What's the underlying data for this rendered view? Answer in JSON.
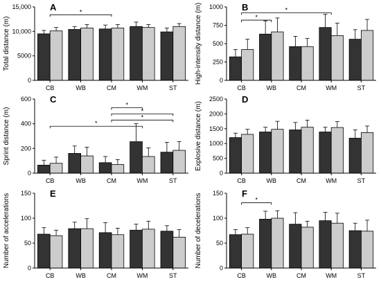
{
  "chart_data": [
    {
      "panel": "A",
      "type": "bar",
      "categories": [
        "CB",
        "WB",
        "CM",
        "WM",
        "ST"
      ],
      "ylabel": "Total distance (m)",
      "ylim": [
        0,
        15000
      ],
      "yticks": [
        "0",
        "5000",
        "10,000",
        "15,000"
      ],
      "ytick_values": [
        0,
        5000,
        10000,
        15000
      ],
      "series": [
        {
          "values": [
            9500,
            10400,
            10500,
            11000,
            9900
          ],
          "errors": [
            700,
            600,
            800,
            900,
            800
          ]
        },
        {
          "values": [
            10100,
            10700,
            10700,
            10800,
            11000
          ],
          "errors": [
            700,
            700,
            700,
            600,
            600
          ]
        }
      ],
      "annotations": [
        {
          "from": 0,
          "to": 2,
          "label": "*",
          "y": 13400
        }
      ]
    },
    {
      "panel": "B",
      "type": "bar",
      "categories": [
        "CB",
        "WB",
        "CM",
        "WM",
        "ST"
      ],
      "ylabel": "High-intensity distance (m)",
      "ylim": [
        0,
        1000
      ],
      "yticks": [
        "0",
        "250",
        "500",
        "750",
        "1000"
      ],
      "ytick_values": [
        0,
        250,
        500,
        750,
        1000
      ],
      "series": [
        {
          "values": [
            320,
            630,
            460,
            720,
            560
          ],
          "errors": [
            100,
            180,
            140,
            180,
            130
          ]
        },
        {
          "values": [
            420,
            660,
            460,
            610,
            680
          ],
          "errors": [
            140,
            190,
            110,
            170,
            150
          ]
        }
      ],
      "annotations": [
        {
          "from": 0,
          "to": 1,
          "label": "*",
          "y": 820
        },
        {
          "from": 0,
          "to": 3,
          "label": "*",
          "y": 920
        }
      ]
    },
    {
      "panel": "C",
      "type": "bar",
      "categories": [
        "CB",
        "WB",
        "CM",
        "WM",
        "ST"
      ],
      "ylabel": "Sprint distance (m)",
      "ylim": [
        0,
        600
      ],
      "yticks": [
        "0",
        "200",
        "400",
        "600"
      ],
      "ytick_values": [
        0,
        200,
        400,
        600
      ],
      "series": [
        {
          "values": [
            65,
            160,
            85,
            255,
            170
          ],
          "errors": [
            40,
            60,
            50,
            145,
            80
          ]
        },
        {
          "values": [
            80,
            140,
            70,
            135,
            185
          ],
          "errors": [
            50,
            70,
            40,
            70,
            70
          ]
        }
      ],
      "annotations": [
        {
          "from": 2,
          "to": 3,
          "label": "*",
          "y": 530
        },
        {
          "from": 2,
          "to": 4,
          "label": "*",
          "y": 480
        },
        {
          "from": 2,
          "to": 4,
          "label": "*",
          "y": 430
        },
        {
          "from": 0,
          "to": 3,
          "label": "*",
          "y": 380
        }
      ]
    },
    {
      "panel": "D",
      "type": "bar",
      "categories": [
        "CB",
        "WB",
        "CM",
        "WM",
        "ST"
      ],
      "ylabel": "Explosive distance (m)",
      "ylim": [
        0,
        2500
      ],
      "yticks": [
        "0",
        "500",
        "1000",
        "1500",
        "2000",
        "2500"
      ],
      "ytick_values": [
        0,
        500,
        1000,
        1500,
        2000,
        2500
      ],
      "series": [
        {
          "values": [
            1200,
            1390,
            1460,
            1390,
            1180
          ],
          "errors": [
            150,
            160,
            250,
            160,
            280
          ]
        },
        {
          "values": [
            1310,
            1480,
            1550,
            1540,
            1370
          ],
          "errors": [
            170,
            270,
            240,
            200,
            220
          ]
        }
      ],
      "annotations": []
    },
    {
      "panel": "E",
      "type": "bar",
      "categories": [
        "CB",
        "WB",
        "CM",
        "WM",
        "ST"
      ],
      "ylabel": "Number of accelerations",
      "ylim": [
        0,
        150
      ],
      "yticks": [
        "0",
        "50",
        "100",
        "150"
      ],
      "ytick_values": [
        0,
        50,
        100,
        150
      ],
      "series": [
        {
          "values": [
            68,
            79,
            71,
            76,
            74
          ],
          "errors": [
            13,
            13,
            20,
            12,
            11
          ]
        },
        {
          "values": [
            65,
            79,
            67,
            78,
            62
          ],
          "errors": [
            11,
            20,
            13,
            16,
            15
          ]
        }
      ],
      "annotations": []
    },
    {
      "panel": "F",
      "type": "bar",
      "categories": [
        "CB",
        "WB",
        "CM",
        "WM",
        "ST"
      ],
      "ylabel": "Number of decelerations",
      "ylim": [
        0,
        150
      ],
      "yticks": [
        "0",
        "50",
        "100",
        "150"
      ],
      "ytick_values": [
        0,
        50,
        100,
        150
      ],
      "series": [
        {
          "values": [
            67,
            98,
            88,
            95,
            75
          ],
          "errors": [
            10,
            16,
            23,
            17,
            15
          ]
        },
        {
          "values": [
            68,
            100,
            82,
            90,
            74
          ],
          "errors": [
            13,
            15,
            12,
            20,
            22
          ]
        }
      ],
      "annotations": [
        {
          "from": 0,
          "to": 1,
          "label": "*",
          "y": 131
        }
      ]
    }
  ],
  "colors": {
    "series_0": "#333333",
    "series_1": "#cccccc"
  }
}
